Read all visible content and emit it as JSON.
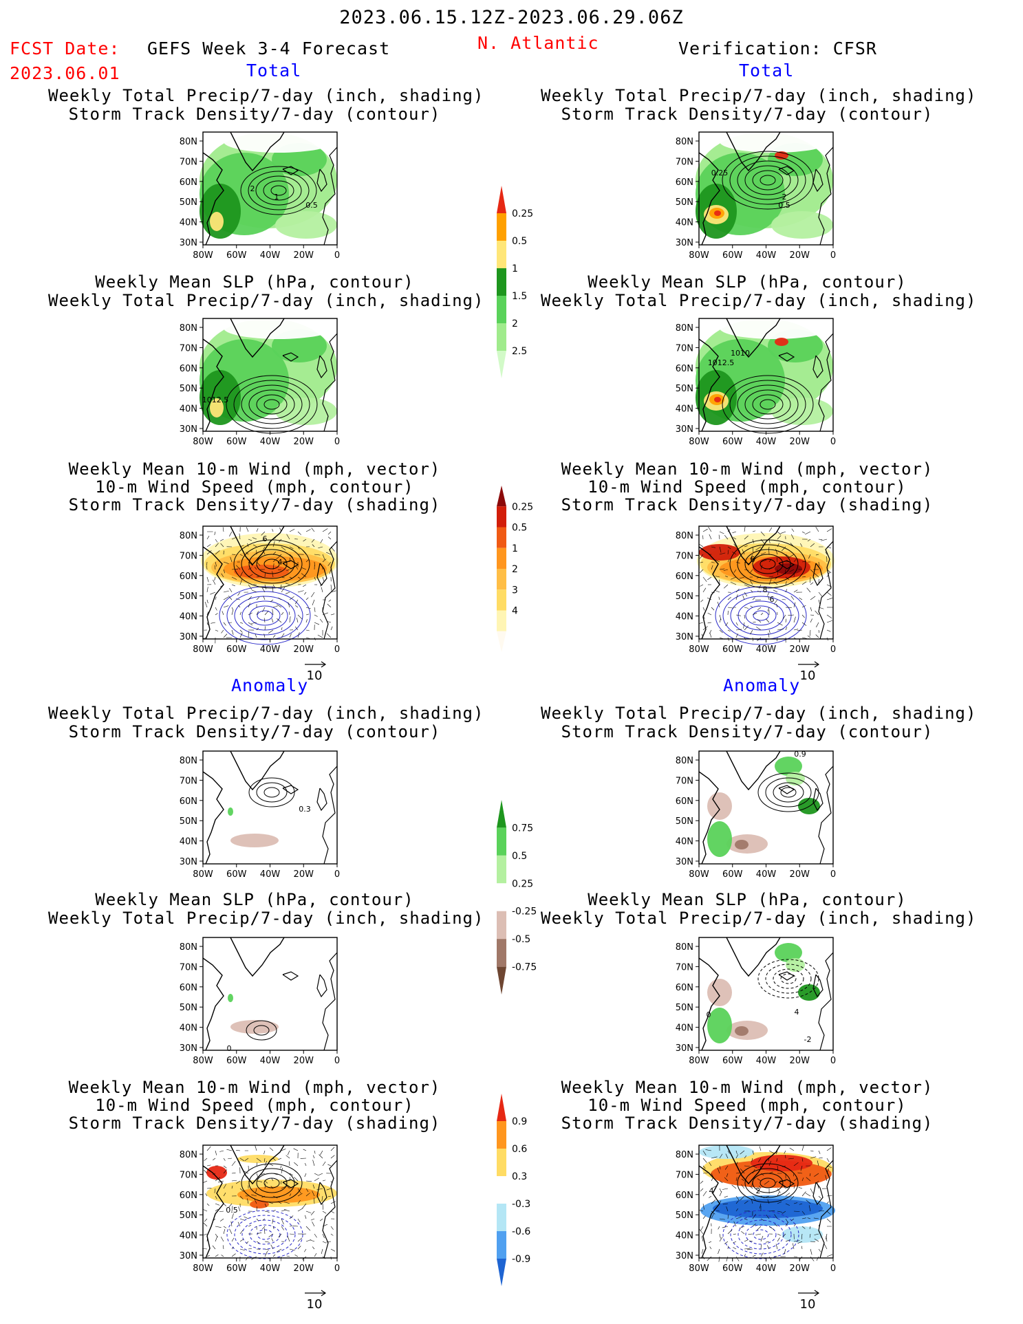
{
  "header": {
    "date_range": "2023.06.15.12Z-2023.06.29.06Z",
    "fcst_label": "FCST Date:",
    "fcst_date": "2023.06.01",
    "model": "GEFS Week 3-4 Forecast",
    "region": "N. Atlantic",
    "verification": "Verification: CFSR"
  },
  "sections": {
    "total_left": "Total",
    "total_right": "Total",
    "anomaly_left": "Anomaly",
    "anomaly_right": "Anomaly"
  },
  "panel_titles": {
    "precip_track": [
      "Weekly Total Precip/7-day (inch, shading)",
      "Storm Track Density/7-day (contour)"
    ],
    "slp_precip": [
      "Weekly Mean SLP (hPa, contour)",
      "Weekly Total Precip/7-day (inch, shading)"
    ],
    "wind_track": [
      "Weekly Mean 10-m Wind (mph, vector)",
      "10-m Wind Speed (mph, contour)",
      "Storm Track Density/7-day (shading)"
    ]
  },
  "axes": {
    "lat_ticks": [
      "80N",
      "70N",
      "60N",
      "50N",
      "40N",
      "30N"
    ],
    "lon_ticks": [
      "80W",
      "60W",
      "40W",
      "20W",
      "0"
    ],
    "vector_ref": "10"
  },
  "colors": {
    "precip_green_light": "#b4f0a0",
    "precip_green": "#5ad25a",
    "precip_green_dark": "#1e961e",
    "precip_yellow": "#ffe678",
    "precip_orange": "#ffa000",
    "precip_red": "#e62814",
    "anom_brown_light": "#dcbeb4",
    "anom_brown": "#a07868",
    "anom_brown_dark": "#6e4632",
    "track_yellow_light": "#fff5b4",
    "track_yellow": "#ffdc64",
    "track_orange_light": "#ffbe46",
    "track_orange": "#ff961e",
    "track_red_orange": "#f05a14",
    "track_red": "#d21e0a",
    "track_dark_red": "#8c0a0a",
    "anom_blue_light": "#b4e6f5",
    "anom_blue": "#50a0f0",
    "anom_blue_dark": "#1e64d2",
    "wind_contour": "#2828c8"
  },
  "chart_data": [
    {
      "type": "colorbar",
      "name": "Total precip (inch)",
      "tick_labels": [
        "0.25",
        "0.5",
        "1",
        "1.5",
        "2",
        "2.5"
      ],
      "colors": [
        "#d2fac8",
        "#a0eb8c",
        "#5ad25a",
        "#1e961e",
        "#ffe678",
        "#ffa000",
        "#e62814"
      ]
    },
    {
      "type": "colorbar",
      "name": "Total storm track density",
      "tick_labels": [
        "0.25",
        "0.5",
        "1",
        "2",
        "3",
        "4"
      ],
      "colors": [
        "#fffaf0",
        "#fff5b4",
        "#ffdc64",
        "#ffbe46",
        "#ff961e",
        "#f05a14",
        "#d21e0a",
        "#8c0a0a"
      ]
    },
    {
      "type": "colorbar",
      "name": "Precip anomaly (inch)",
      "tick_labels": [
        "0.75",
        "0.5",
        "0.25",
        "-0.25",
        "-0.5",
        "-0.75"
      ],
      "colors": [
        "#1e961e",
        "#5ad25a",
        "#b4f0a0",
        "#ffffff",
        "#dcbeb4",
        "#a07868",
        "#6e4632"
      ]
    },
    {
      "type": "colorbar",
      "name": "Storm track density anomaly",
      "tick_labels": [
        "0.9",
        "0.6",
        "0.3",
        "-0.3",
        "-0.6",
        "-0.9"
      ],
      "colors": [
        "#e62814",
        "#ff961e",
        "#ffdc64",
        "#ffffff",
        "#b4e6f5",
        "#50a0f0",
        "#1e64d2"
      ]
    },
    {
      "type": "map_panels",
      "panels": [
        {
          "id": "L1",
          "contour_labels": [
            "2",
            "1",
            "0.5"
          ]
        },
        {
          "id": "R1",
          "contour_labels": [
            "0.25",
            "2",
            "0.5"
          ]
        },
        {
          "id": "L2",
          "contour_labels": [
            "1012.5"
          ]
        },
        {
          "id": "R2",
          "contour_labels": [
            "1010",
            "1012.5"
          ]
        },
        {
          "id": "L3",
          "contour_labels": [
            "6",
            "4"
          ]
        },
        {
          "id": "R3",
          "contour_labels": [
            "6",
            "8",
            "6"
          ]
        },
        {
          "id": "L4",
          "contour_labels": [
            "0.3"
          ]
        },
        {
          "id": "R4",
          "contour_labels": [
            "0.9"
          ]
        },
        {
          "id": "L5",
          "contour_labels": [
            "0"
          ]
        },
        {
          "id": "R5",
          "contour_labels": [
            "0",
            "4",
            "-2"
          ]
        },
        {
          "id": "L6",
          "contour_labels": [
            "0.5"
          ]
        },
        {
          "id": "R6",
          "contour_labels": [
            "4",
            "2"
          ]
        }
      ]
    }
  ]
}
